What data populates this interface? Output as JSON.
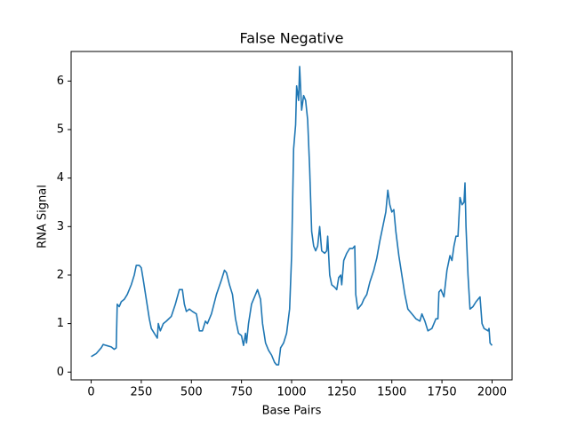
{
  "chart_data": {
    "type": "line",
    "title": "False Negative",
    "xlabel": "Base Pairs",
    "ylabel": "RNA Signal",
    "x": [
      0,
      25,
      50,
      60,
      75,
      100,
      115,
      125,
      130,
      140,
      150,
      165,
      180,
      200,
      215,
      225,
      240,
      250,
      260,
      275,
      290,
      300,
      315,
      330,
      335,
      345,
      360,
      375,
      400,
      420,
      440,
      455,
      465,
      475,
      490,
      505,
      525,
      540,
      555,
      570,
      580,
      600,
      625,
      650,
      665,
      675,
      690,
      705,
      720,
      735,
      750,
      760,
      770,
      775,
      785,
      800,
      815,
      830,
      845,
      855,
      870,
      885,
      900,
      915,
      925,
      935,
      945,
      960,
      975,
      990,
      1000,
      1010,
      1020,
      1025,
      1035,
      1040,
      1050,
      1060,
      1070,
      1080,
      1090,
      1100,
      1110,
      1120,
      1130,
      1140,
      1150,
      1165,
      1175,
      1180,
      1190,
      1200,
      1215,
      1225,
      1235,
      1245,
      1250,
      1260,
      1275,
      1290,
      1305,
      1315,
      1320,
      1330,
      1340,
      1350,
      1360,
      1375,
      1390,
      1410,
      1425,
      1440,
      1455,
      1470,
      1480,
      1490,
      1500,
      1510,
      1520,
      1535,
      1550,
      1565,
      1580,
      1600,
      1620,
      1640,
      1650,
      1665,
      1680,
      1700,
      1720,
      1730,
      1735,
      1745,
      1760,
      1775,
      1790,
      1800,
      1810,
      1820,
      1830,
      1840,
      1850,
      1860,
      1865,
      1870,
      1880,
      1890,
      1905,
      1920,
      1930,
      1940,
      1950,
      1960,
      1980,
      1985,
      1990,
      2000
    ],
    "series": [
      {
        "name": "RNA Signal",
        "color": "#1f77b4",
        "values": [
          0.32,
          0.38,
          0.5,
          0.57,
          0.55,
          0.52,
          0.47,
          0.5,
          1.4,
          1.35,
          1.45,
          1.5,
          1.6,
          1.8,
          2.0,
          2.2,
          2.2,
          2.15,
          1.9,
          1.5,
          1.1,
          0.9,
          0.8,
          0.7,
          1.0,
          0.85,
          1.0,
          1.05,
          1.15,
          1.4,
          1.7,
          1.7,
          1.4,
          1.25,
          1.3,
          1.25,
          1.2,
          0.85,
          0.85,
          1.05,
          1.0,
          1.2,
          1.6,
          1.9,
          2.1,
          2.05,
          1.8,
          1.6,
          1.1,
          0.8,
          0.75,
          0.55,
          0.8,
          0.6,
          1.0,
          1.4,
          1.55,
          1.7,
          1.5,
          1.0,
          0.6,
          0.45,
          0.35,
          0.2,
          0.15,
          0.15,
          0.5,
          0.6,
          0.8,
          1.3,
          2.4,
          4.6,
          5.1,
          5.9,
          5.6,
          6.3,
          5.4,
          5.7,
          5.6,
          5.2,
          4.2,
          2.9,
          2.6,
          2.5,
          2.6,
          3.0,
          2.5,
          2.45,
          2.5,
          2.8,
          2.0,
          1.8,
          1.75,
          1.7,
          1.95,
          2.0,
          1.8,
          2.3,
          2.45,
          2.55,
          2.55,
          2.6,
          1.6,
          1.3,
          1.35,
          1.4,
          1.5,
          1.6,
          1.85,
          2.1,
          2.35,
          2.7,
          3.0,
          3.3,
          3.75,
          3.45,
          3.3,
          3.35,
          2.9,
          2.4,
          2.0,
          1.6,
          1.3,
          1.2,
          1.1,
          1.05,
          1.2,
          1.05,
          0.85,
          0.9,
          1.1,
          1.1,
          1.65,
          1.7,
          1.55,
          2.1,
          2.4,
          2.3,
          2.6,
          2.8,
          2.8,
          3.6,
          3.45,
          3.5,
          3.9,
          3.0,
          2.0,
          1.3,
          1.35,
          1.45,
          1.5,
          1.55,
          1.0,
          0.9,
          0.85,
          0.9,
          0.6,
          0.55
        ]
      }
    ],
    "xlim": [
      -100,
      2100
    ],
    "xticks": [
      0,
      250,
      500,
      750,
      1000,
      1250,
      1500,
      1750,
      2000
    ],
    "ylim": [
      -0.16,
      6.61
    ],
    "yticks": [
      0,
      1,
      2,
      3,
      4,
      5,
      6
    ]
  }
}
